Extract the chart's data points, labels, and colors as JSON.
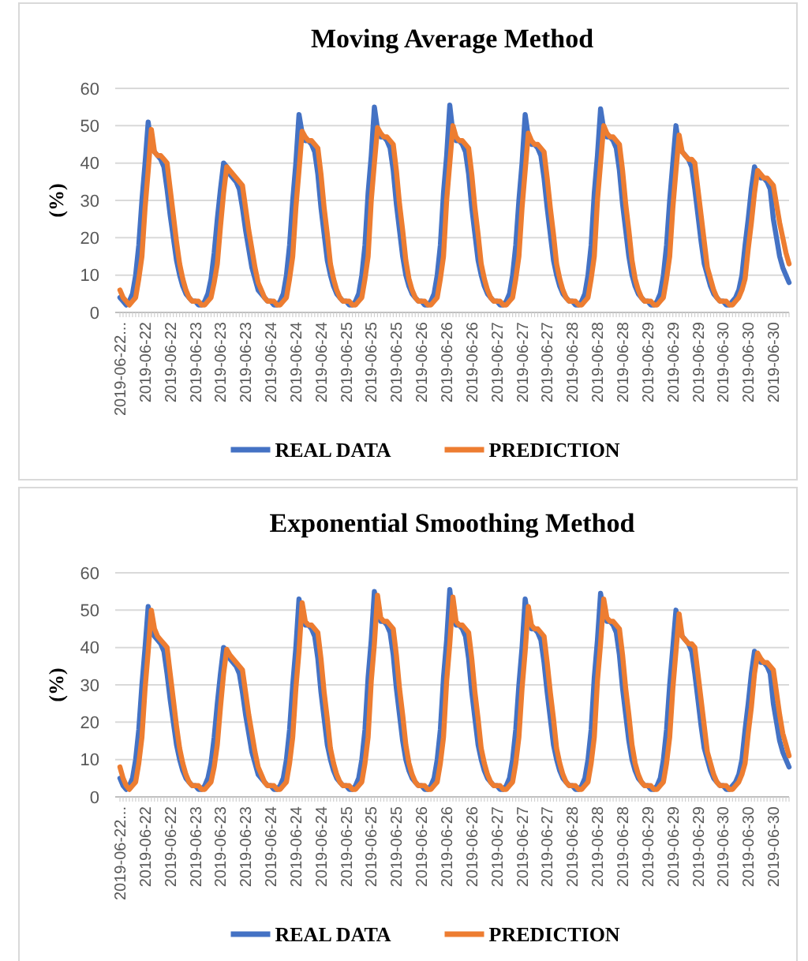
{
  "chart_data": [
    {
      "type": "line",
      "title": "Moving Average Method",
      "ylabel": "(%)",
      "ylim": [
        0,
        60
      ],
      "yticks": [
        0,
        10,
        20,
        30,
        40,
        50,
        60
      ],
      "grid": "y",
      "legend": "bottom",
      "marker": "none",
      "line_style": "solid",
      "categories": [
        "2019-06-22...",
        null,
        null,
        null,
        null,
        null,
        null,
        null,
        "2019-06-22",
        null,
        null,
        null,
        null,
        null,
        null,
        null,
        "2019-06-22",
        null,
        null,
        null,
        null,
        null,
        null,
        null,
        "2019-06-23",
        null,
        null,
        null,
        null,
        null,
        null,
        null,
        "2019-06-23",
        null,
        null,
        null,
        null,
        null,
        null,
        null,
        "2019-06-23",
        null,
        null,
        null,
        null,
        null,
        null,
        null,
        "2019-06-24",
        null,
        null,
        null,
        null,
        null,
        null,
        null,
        "2019-06-24",
        null,
        null,
        null,
        null,
        null,
        null,
        null,
        "2019-06-24",
        null,
        null,
        null,
        null,
        null,
        null,
        null,
        "2019-06-25",
        null,
        null,
        null,
        null,
        null,
        null,
        null,
        "2019-06-25",
        null,
        null,
        null,
        null,
        null,
        null,
        null,
        "2019-06-25",
        null,
        null,
        null,
        null,
        null,
        null,
        null,
        "2019-06-26",
        null,
        null,
        null,
        null,
        null,
        null,
        null,
        "2019-06-26",
        null,
        null,
        null,
        null,
        null,
        null,
        null,
        "2019-06-26",
        null,
        null,
        null,
        null,
        null,
        null,
        null,
        "2019-06-27",
        null,
        null,
        null,
        null,
        null,
        null,
        null,
        "2019-06-27",
        null,
        null,
        null,
        null,
        null,
        null,
        null,
        "2019-06-27",
        null,
        null,
        null,
        null,
        null,
        null,
        null,
        "2019-06-28",
        null,
        null,
        null,
        null,
        null,
        null,
        null,
        "2019-06-28",
        null,
        null,
        null,
        null,
        null,
        null,
        null,
        "2019-06-28",
        null,
        null,
        null,
        null,
        null,
        null,
        null,
        "2019-06-29",
        null,
        null,
        null,
        null,
        null,
        null,
        null,
        "2019-06-29",
        null,
        null,
        null,
        null,
        null,
        null,
        null,
        "2019-06-29",
        null,
        null,
        null,
        null,
        null,
        null,
        null,
        "2019-06-30",
        null,
        null,
        null,
        null,
        null,
        null,
        null,
        "2019-06-30",
        null,
        null,
        null,
        null,
        null,
        null,
        null,
        "2019-06-30",
        null,
        null,
        null,
        null,
        null
      ],
      "series": [
        {
          "name": "REAL DATA",
          "color": "#4472c4",
          "values": [
            4,
            3,
            2,
            3,
            5,
            10,
            18,
            30,
            40,
            51,
            44,
            43,
            42,
            41,
            39,
            33,
            26,
            20,
            14,
            10,
            7,
            5,
            4,
            3,
            3,
            2,
            2,
            3,
            5,
            9,
            16,
            25,
            33,
            40,
            39,
            37,
            36,
            35,
            33,
            28,
            22,
            17,
            12,
            9,
            6,
            5,
            4,
            3,
            3,
            2,
            2,
            3,
            5,
            10,
            18,
            30,
            40,
            53,
            48,
            46,
            46,
            45,
            43,
            37,
            28,
            21,
            14,
            10,
            7,
            5,
            4,
            3,
            3,
            2,
            2,
            3,
            5,
            10,
            18,
            32,
            42,
            55,
            49,
            47,
            47,
            46,
            44,
            38,
            29,
            22,
            15,
            10,
            7,
            5,
            4,
            3,
            3,
            2,
            2,
            3,
            5,
            10,
            18,
            32,
            42,
            55.5,
            48,
            46,
            46,
            45,
            43,
            37,
            28,
            21,
            14,
            10,
            7,
            5,
            4,
            3,
            3,
            2,
            2,
            3,
            5,
            10,
            18,
            30,
            40,
            53,
            47,
            45,
            45,
            44,
            42,
            36,
            28,
            21,
            14,
            10,
            7,
            5,
            4,
            3,
            3,
            2,
            2,
            3,
            5,
            10,
            18,
            32,
            42,
            54.5,
            49,
            47,
            47,
            46,
            44,
            38,
            29,
            22,
            15,
            10,
            7,
            5,
            4,
            3,
            3,
            2,
            2,
            3,
            5,
            10,
            18,
            30,
            40,
            50,
            44,
            43,
            42,
            41,
            39,
            33,
            26,
            19,
            13,
            10,
            7,
            5,
            4,
            3,
            3,
            2,
            2,
            3,
            4,
            6,
            10,
            18,
            25,
            33,
            39,
            37,
            36,
            36,
            35,
            33,
            25,
            20,
            15,
            12,
            10,
            8
          ]
        },
        {
          "name": "PREDICTION",
          "color": "#ed7d31",
          "values": [
            6,
            4,
            3,
            2,
            3,
            4,
            9,
            15,
            28,
            38,
            49,
            43,
            42,
            42,
            41,
            40,
            33,
            26,
            19,
            13,
            9,
            6,
            4,
            3,
            3,
            3,
            2,
            2,
            3,
            4,
            8,
            13,
            23,
            32,
            39,
            38,
            37,
            36,
            35,
            34,
            28,
            22,
            17,
            12,
            8,
            6,
            4,
            3,
            3,
            3,
            2,
            2,
            3,
            4,
            9,
            15,
            28,
            38,
            48.5,
            47,
            46,
            46,
            45,
            44,
            37,
            28,
            21,
            13,
            9,
            6,
            4,
            3,
            3,
            3,
            2,
            2,
            3,
            4,
            9,
            15,
            30,
            40,
            49.5,
            48,
            47,
            47,
            46,
            45,
            38,
            29,
            22,
            14,
            9,
            6,
            4,
            3,
            3,
            3,
            2,
            2,
            3,
            4,
            9,
            15,
            30,
            40,
            50,
            47,
            46,
            46,
            45,
            44,
            37,
            28,
            21,
            13,
            9,
            6,
            4,
            3,
            3,
            3,
            2,
            2,
            3,
            4,
            9,
            15,
            28,
            38,
            48,
            46,
            45,
            45,
            44,
            43,
            36,
            28,
            21,
            13,
            9,
            6,
            4,
            3,
            3,
            3,
            2,
            2,
            3,
            4,
            9,
            15,
            30,
            40,
            50,
            48,
            47,
            47,
            46,
            45,
            38,
            29,
            22,
            14,
            9,
            6,
            4,
            3,
            3,
            3,
            2,
            2,
            3,
            4,
            9,
            15,
            28,
            38,
            47.5,
            43,
            42,
            41,
            41,
            40,
            33,
            26,
            19,
            12,
            9,
            6,
            4,
            3,
            3,
            3,
            2,
            2,
            3,
            4,
            6,
            9,
            17,
            24,
            32,
            38,
            37,
            36,
            36,
            35,
            34,
            29,
            24,
            20,
            16,
            13
          ]
        }
      ]
    },
    {
      "type": "line",
      "title": "Exponential Smoothing Method",
      "ylabel": "(%)",
      "ylim": [
        0,
        60
      ],
      "yticks": [
        0,
        10,
        20,
        30,
        40,
        50,
        60
      ],
      "grid": "y",
      "legend": "bottom",
      "marker": "none",
      "line_style": "solid",
      "categories": [
        "2019-06-22...",
        null,
        null,
        null,
        null,
        null,
        null,
        null,
        "2019-06-22",
        null,
        null,
        null,
        null,
        null,
        null,
        null,
        "2019-06-22",
        null,
        null,
        null,
        null,
        null,
        null,
        null,
        "2019-06-23",
        null,
        null,
        null,
        null,
        null,
        null,
        null,
        "2019-06-23",
        null,
        null,
        null,
        null,
        null,
        null,
        null,
        "2019-06-23",
        null,
        null,
        null,
        null,
        null,
        null,
        null,
        "2019-06-24",
        null,
        null,
        null,
        null,
        null,
        null,
        null,
        "2019-06-24",
        null,
        null,
        null,
        null,
        null,
        null,
        null,
        "2019-06-24",
        null,
        null,
        null,
        null,
        null,
        null,
        null,
        "2019-06-25",
        null,
        null,
        null,
        null,
        null,
        null,
        null,
        "2019-06-25",
        null,
        null,
        null,
        null,
        null,
        null,
        null,
        "2019-06-25",
        null,
        null,
        null,
        null,
        null,
        null,
        null,
        "2019-06-26",
        null,
        null,
        null,
        null,
        null,
        null,
        null,
        "2019-06-26",
        null,
        null,
        null,
        null,
        null,
        null,
        null,
        "2019-06-26",
        null,
        null,
        null,
        null,
        null,
        null,
        null,
        "2019-06-27",
        null,
        null,
        null,
        null,
        null,
        null,
        null,
        "2019-06-27",
        null,
        null,
        null,
        null,
        null,
        null,
        null,
        "2019-06-27",
        null,
        null,
        null,
        null,
        null,
        null,
        null,
        "2019-06-28",
        null,
        null,
        null,
        null,
        null,
        null,
        null,
        "2019-06-28",
        null,
        null,
        null,
        null,
        null,
        null,
        null,
        "2019-06-28",
        null,
        null,
        null,
        null,
        null,
        null,
        null,
        "2019-06-29",
        null,
        null,
        null,
        null,
        null,
        null,
        null,
        "2019-06-29",
        null,
        null,
        null,
        null,
        null,
        null,
        null,
        "2019-06-29",
        null,
        null,
        null,
        null,
        null,
        null,
        null,
        "2019-06-30",
        null,
        null,
        null,
        null,
        null,
        null,
        null,
        "2019-06-30",
        null,
        null,
        null,
        null,
        null,
        null,
        null,
        "2019-06-30",
        null,
        null,
        null,
        null,
        null
      ],
      "series": [
        {
          "name": "REAL DATA",
          "color": "#4472c4",
          "values": [
            5,
            3,
            2,
            3,
            5,
            10,
            18,
            30,
            40,
            51,
            44,
            43,
            42,
            41,
            39,
            33,
            26,
            20,
            14,
            10,
            7,
            5,
            4,
            3,
            3,
            2,
            2,
            3,
            5,
            9,
            16,
            25,
            33,
            40,
            39,
            37,
            36,
            35,
            33,
            28,
            22,
            17,
            12,
            9,
            6,
            5,
            4,
            3,
            3,
            2,
            2,
            3,
            5,
            10,
            18,
            30,
            40,
            53,
            48,
            46,
            46,
            45,
            43,
            37,
            28,
            21,
            14,
            10,
            7,
            5,
            4,
            3,
            3,
            2,
            2,
            3,
            5,
            10,
            18,
            32,
            42,
            55,
            49,
            47,
            47,
            46,
            44,
            38,
            29,
            22,
            15,
            10,
            7,
            5,
            4,
            3,
            3,
            2,
            2,
            3,
            5,
            10,
            18,
            32,
            42,
            55.5,
            48,
            46,
            46,
            45,
            43,
            37,
            28,
            21,
            14,
            10,
            7,
            5,
            4,
            3,
            3,
            2,
            2,
            3,
            5,
            10,
            18,
            30,
            40,
            53,
            47,
            45,
            45,
            44,
            42,
            36,
            28,
            21,
            14,
            10,
            7,
            5,
            4,
            3,
            3,
            2,
            2,
            3,
            5,
            10,
            18,
            32,
            42,
            54.5,
            49,
            47,
            47,
            46,
            44,
            38,
            29,
            22,
            15,
            10,
            7,
            5,
            4,
            3,
            3,
            2,
            2,
            3,
            5,
            10,
            18,
            30,
            40,
            50,
            44,
            43,
            42,
            41,
            39,
            33,
            26,
            19,
            13,
            10,
            7,
            5,
            4,
            3,
            3,
            2,
            2,
            3,
            4,
            6,
            10,
            18,
            25,
            33,
            39,
            37,
            36,
            36,
            35,
            33,
            25,
            20,
            15,
            12,
            10,
            8
          ]
        },
        {
          "name": "PREDICTION",
          "color": "#ed7d31",
          "values": [
            8,
            5,
            3,
            2,
            3,
            4,
            9,
            16,
            29,
            39,
            50,
            45,
            43,
            42,
            41,
            40,
            33,
            26,
            19,
            13,
            9,
            6,
            4,
            3,
            3,
            3,
            2,
            2,
            3,
            4,
            8,
            14,
            24,
            33,
            39.5,
            38,
            37,
            36,
            35,
            34,
            28,
            22,
            17,
            12,
            8,
            6,
            4,
            3,
            3,
            3,
            2,
            2,
            3,
            4,
            9,
            16,
            29,
            39,
            52,
            47,
            46,
            46,
            45,
            44,
            37,
            28,
            21,
            13,
            9,
            6,
            4,
            3,
            3,
            3,
            2,
            2,
            3,
            4,
            9,
            16,
            31,
            41,
            54,
            48,
            47,
            47,
            46,
            45,
            38,
            29,
            22,
            14,
            9,
            6,
            4,
            3,
            3,
            3,
            2,
            2,
            3,
            4,
            9,
            16,
            31,
            41,
            53.5,
            47,
            46,
            46,
            45,
            44,
            37,
            28,
            21,
            13,
            9,
            6,
            4,
            3,
            3,
            3,
            2,
            2,
            3,
            4,
            9,
            16,
            29,
            39,
            51,
            46,
            45,
            45,
            44,
            43,
            36,
            28,
            21,
            13,
            9,
            6,
            4,
            3,
            3,
            3,
            2,
            2,
            3,
            4,
            9,
            16,
            31,
            41,
            53,
            48,
            47,
            47,
            46,
            45,
            38,
            29,
            22,
            14,
            9,
            6,
            4,
            3,
            3,
            3,
            2,
            2,
            3,
            4,
            9,
            16,
            29,
            39,
            49,
            43,
            42,
            41,
            41,
            40,
            33,
            26,
            19,
            12,
            9,
            6,
            4,
            3,
            3,
            3,
            2,
            2,
            3,
            4,
            6,
            9,
            17,
            24,
            33,
            38.5,
            37,
            36,
            36,
            35,
            34,
            28,
            22,
            17,
            14,
            11
          ]
        }
      ]
    }
  ]
}
